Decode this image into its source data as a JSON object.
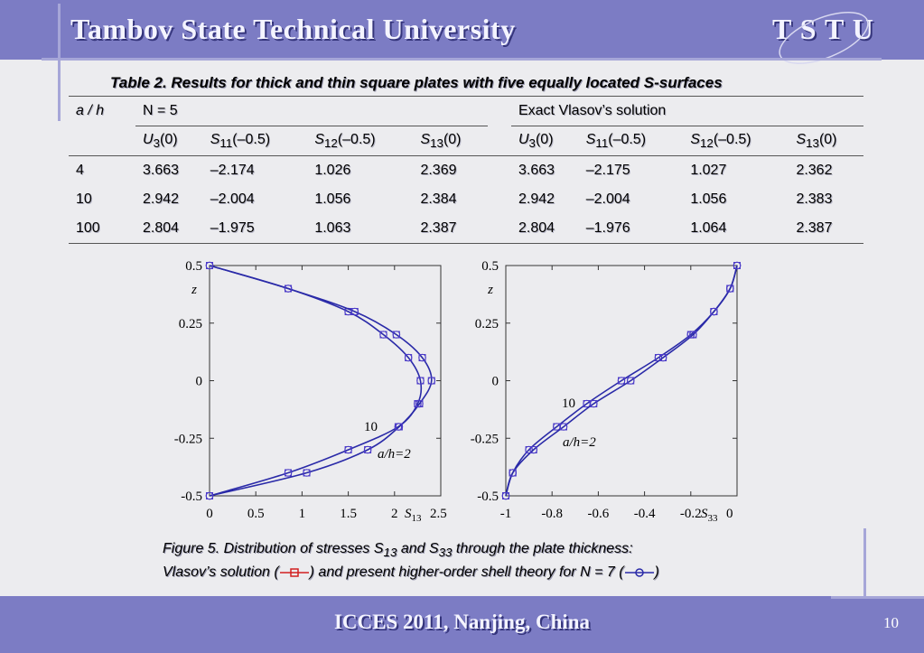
{
  "header": {
    "title": "Tambov State Technical University",
    "logo": "T S T U"
  },
  "table": {
    "caption": "Table 2.  Results for thick and thin square plates with five equally located S-surfaces",
    "col_ah": "a / h",
    "group1": "N = 5",
    "group2": "Exact Vlasov’s solution",
    "sub": [
      "U",
      "S",
      "S",
      "S"
    ],
    "subidx": [
      "3",
      "11",
      "12",
      "13"
    ],
    "subarg": [
      "(0)",
      "(–0.5)",
      "(–0.5)",
      "(0)"
    ],
    "rows": [
      {
        "ah": "4",
        "v": [
          "3.663",
          "–2.174",
          "1.026",
          "2.369",
          "3.663",
          "–2.175",
          "1.027",
          "2.362"
        ]
      },
      {
        "ah": "10",
        "v": [
          "2.942",
          "–2.004",
          "1.056",
          "2.384",
          "2.942",
          "–2.004",
          "1.056",
          "2.383"
        ]
      },
      {
        "ah": "100",
        "v": [
          "2.804",
          "–1.975",
          "1.063",
          "2.387",
          "2.804",
          "–1.976",
          "1.064",
          "2.387"
        ]
      }
    ]
  },
  "chart_data": [
    {
      "type": "line",
      "ylabel": "z",
      "xlabel": "S13",
      "xlim": [
        0,
        2.5
      ],
      "ylim": [
        -0.5,
        0.5
      ],
      "xticks": [
        "0",
        "0.5",
        "1",
        "1.5",
        "2",
        "2.5"
      ],
      "yticks": [
        "0.5",
        "0.25",
        "0",
        "-0.25",
        "-0.5"
      ],
      "annotations": [
        "10",
        "a/h=2"
      ],
      "series": [
        {
          "name": "10",
          "x": [
            0,
            0.85,
            1.5,
            1.88,
            2.15,
            2.28,
            2.25,
            2.04,
            1.5,
            0.85,
            0
          ],
          "y": [
            0.5,
            0.4,
            0.3,
            0.2,
            0.1,
            0,
            -0.1,
            -0.2,
            -0.3,
            -0.4,
            -0.5
          ]
        },
        {
          "name": "a/h=2",
          "x": [
            0,
            0.85,
            1.57,
            2.02,
            2.3,
            2.4,
            2.27,
            2.05,
            1.71,
            1.05,
            0
          ],
          "y": [
            0.5,
            0.4,
            0.3,
            0.2,
            0.1,
            0,
            -0.1,
            -0.2,
            -0.3,
            -0.4,
            -0.5
          ]
        }
      ]
    },
    {
      "type": "line",
      "ylabel": "z",
      "xlabel": "S33",
      "xlim": [
        -1,
        0
      ],
      "ylim": [
        -0.5,
        0.5
      ],
      "xticks": [
        "-1",
        "-0.8",
        "-0.6",
        "-0.4",
        "-0.2",
        "0"
      ],
      "yticks": [
        "0.5",
        "0.25",
        "0",
        "-0.25",
        "-0.5"
      ],
      "annotations": [
        "10",
        "a/h=2"
      ],
      "series": [
        {
          "name": "10",
          "x": [
            -1,
            -0.97,
            -0.9,
            -0.78,
            -0.65,
            -0.5,
            -0.34,
            -0.2,
            -0.1,
            -0.03,
            0
          ],
          "y": [
            -0.5,
            -0.4,
            -0.3,
            -0.2,
            -0.1,
            0,
            0.1,
            0.2,
            0.3,
            0.4,
            0.5
          ]
        },
        {
          "name": "a/h=2",
          "x": [
            -1,
            -0.97,
            -0.88,
            -0.75,
            -0.62,
            -0.46,
            -0.32,
            -0.19,
            -0.1,
            -0.03,
            0
          ],
          "y": [
            -0.5,
            -0.4,
            -0.3,
            -0.2,
            -0.1,
            0,
            0.1,
            0.2,
            0.3,
            0.4,
            0.5
          ]
        }
      ]
    }
  ],
  "figure": {
    "line1_pre": "Figure 5.  Distribution of stresses S",
    "sub13": "13",
    "and": " and S",
    "sub33": "33",
    "line1_post": " through the plate thickness:",
    "line2_a": "Vlasov’s solution (",
    "line2_b": ") and present higher-order shell theory for N = 7 (",
    "line2_c": ")"
  },
  "footer": {
    "text": "ICCES 2011, Nanjing, China",
    "page": "10"
  },
  "colors": {
    "band": "#7c7cc4",
    "curve": "#2a2aa8",
    "marker": "#4c3cc8",
    "legend_red": "#d22020"
  }
}
